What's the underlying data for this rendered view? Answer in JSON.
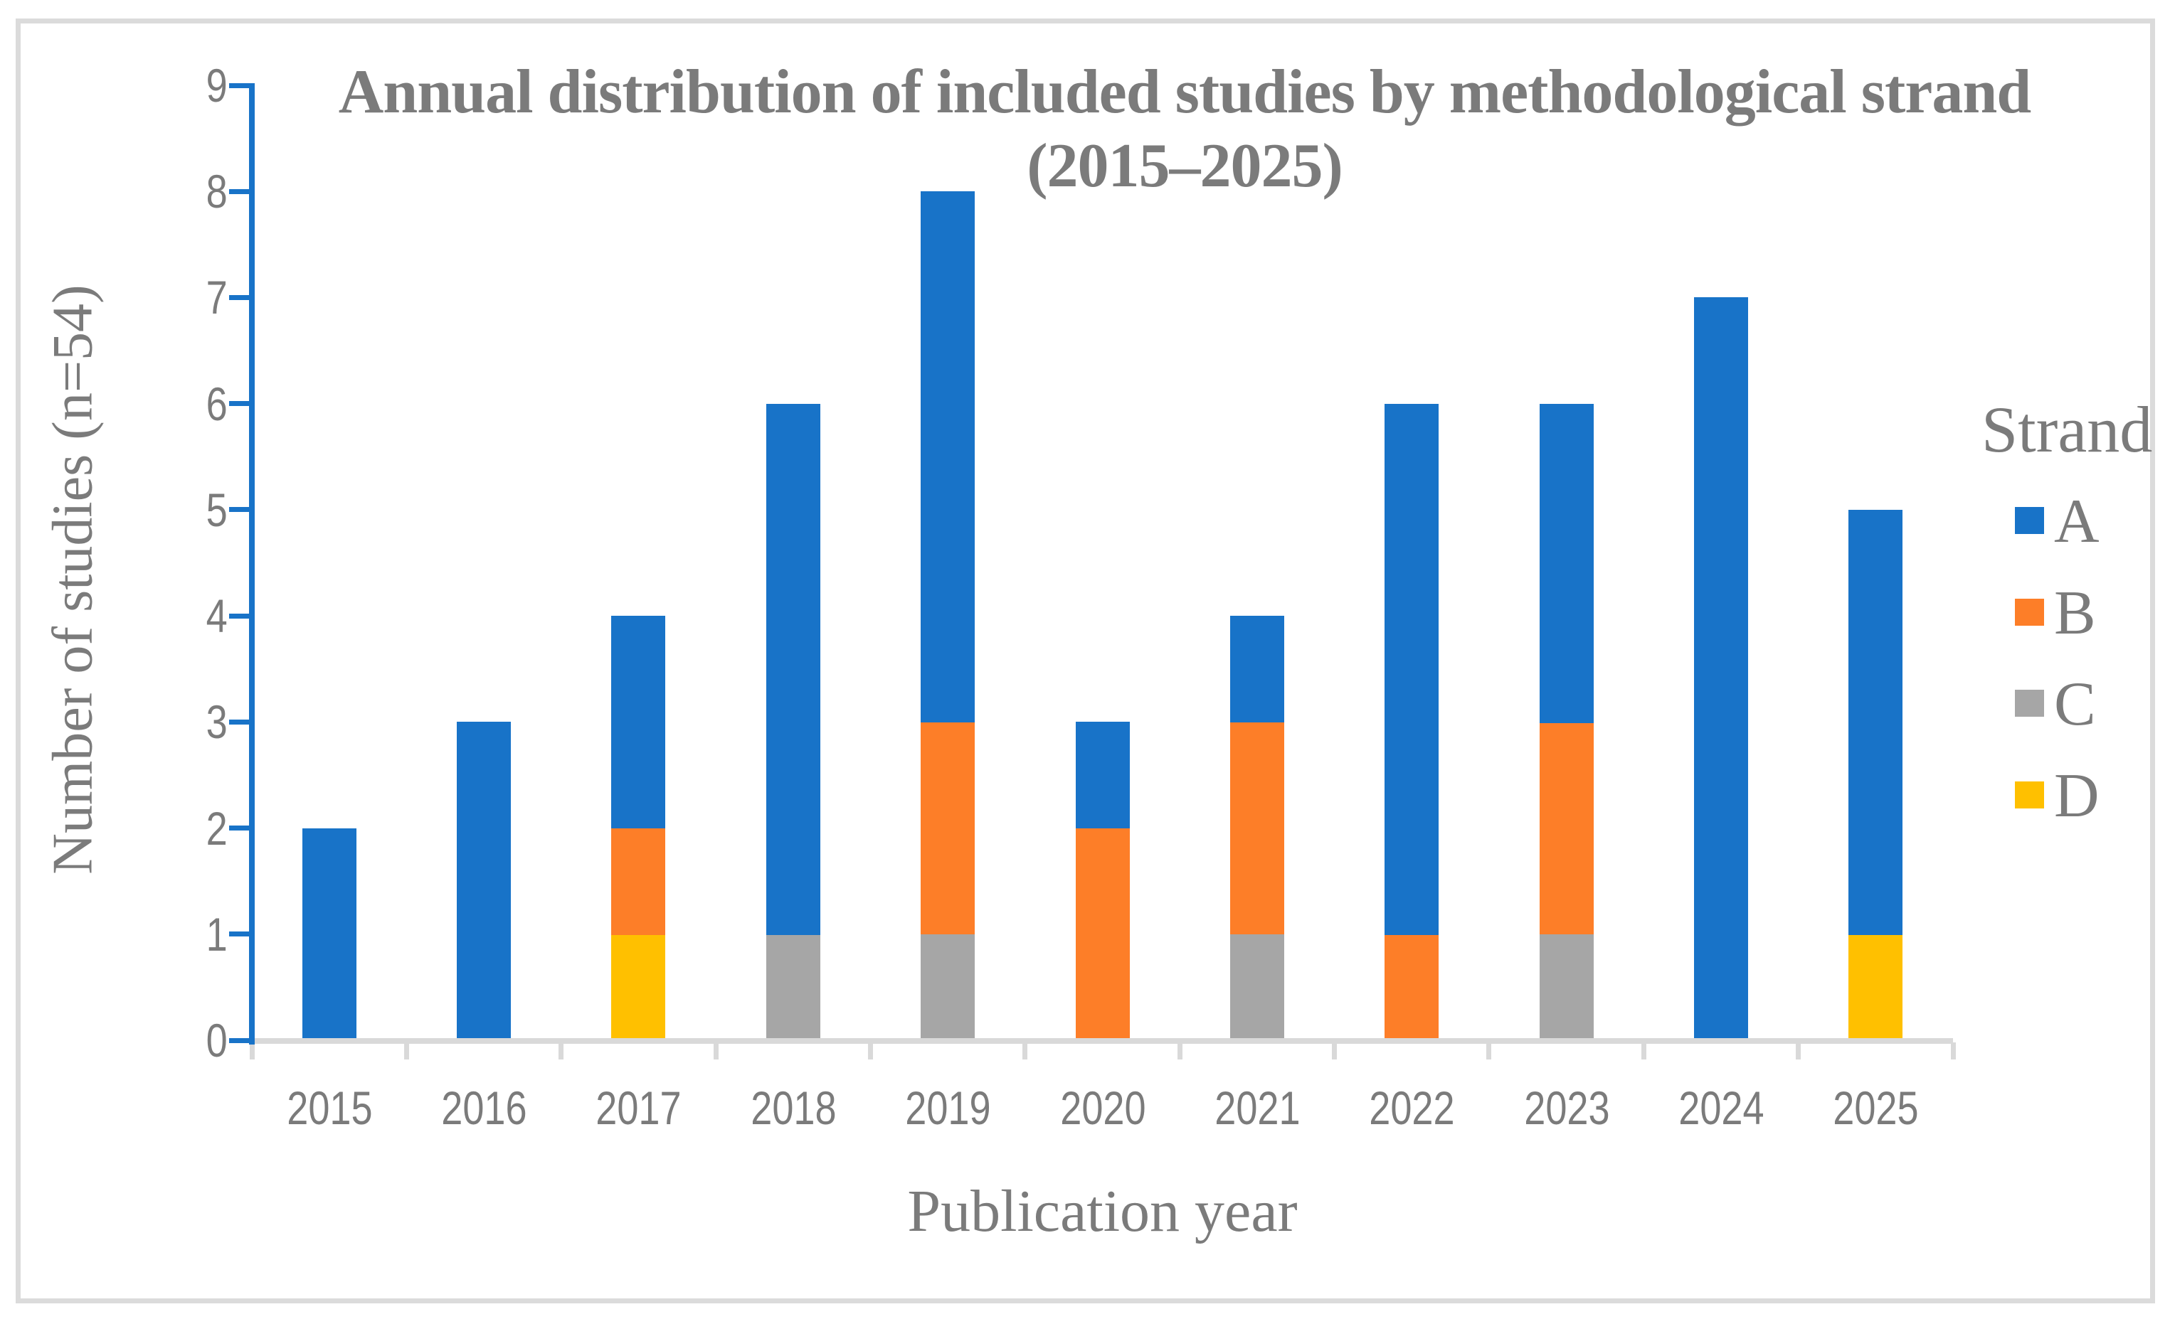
{
  "chart_data": {
    "type": "bar",
    "stacked": true,
    "title_line1": "Annual distribution of included studies by methodological strand",
    "title_line2": "(2015–2025)",
    "xlabel": "Publication year",
    "ylabel": "Number of studies (n=54)",
    "ylim": [
      0,
      9
    ],
    "ytick_step": 1,
    "grid": false,
    "categories": [
      "2015",
      "2016",
      "2017",
      "2018",
      "2019",
      "2020",
      "2021",
      "2022",
      "2023",
      "2024",
      "2025"
    ],
    "series": [
      {
        "name": "A",
        "color": "#1873C8",
        "values": [
          2,
          3,
          2,
          5,
          5,
          1,
          1,
          5,
          3,
          7,
          4
        ]
      },
      {
        "name": "B",
        "color": "#FD7E28",
        "values": [
          0,
          0,
          1,
          0,
          2,
          2,
          2,
          1,
          2,
          0,
          0
        ]
      },
      {
        "name": "C",
        "color": "#A6A6A6",
        "values": [
          0,
          0,
          0,
          1,
          1,
          0,
          1,
          0,
          1,
          0,
          0
        ]
      },
      {
        "name": "D",
        "color": "#FFC000",
        "values": [
          0,
          0,
          1,
          0,
          0,
          0,
          0,
          0,
          0,
          0,
          1
        ]
      }
    ],
    "stack_order_bottom_to_top": [
      "D",
      "C",
      "B",
      "A"
    ],
    "legend": {
      "title": "Strand",
      "position": "right",
      "items": [
        "A",
        "B",
        "C",
        "D"
      ]
    }
  },
  "colors": {
    "y_axis_line": "#1873C8",
    "x_axis_line": "#D9D9D9",
    "text": "#7B7B7B",
    "frame_border": "#DBDBDB",
    "background": "#FFFFFF"
  }
}
